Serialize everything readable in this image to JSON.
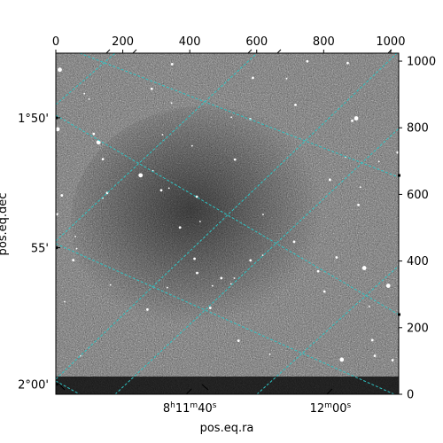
{
  "chart_data": {
    "type": "image",
    "xlabel": "pos.eq.ra",
    "ylabel": "pos.eq.dec",
    "pixel_axes": {
      "top_ticks": [
        0,
        200,
        400,
        600,
        800,
        1000
      ],
      "right_ticks": [
        0,
        200,
        400,
        600,
        800,
        1000
      ],
      "xlim": [
        0,
        1024
      ],
      "ylim": [
        0,
        1024
      ]
    },
    "world_ticks": {
      "ra": [
        {
          "label": "8h11m40s",
          "parts": [
            "8",
            "h",
            "11",
            "m",
            "40",
            "s"
          ],
          "x": 400
        },
        {
          "label": "12m00s",
          "parts": [
            "12",
            "m",
            "00",
            "s"
          ],
          "x": 820
        }
      ],
      "dec": [
        {
          "label": "1°50'",
          "y": 830
        },
        {
          "label": "55'",
          "y": 440
        },
        {
          "label": "2°00'",
          "y": 30
        }
      ]
    },
    "grid_color": "#2ec4c4",
    "colormap": "gray"
  }
}
